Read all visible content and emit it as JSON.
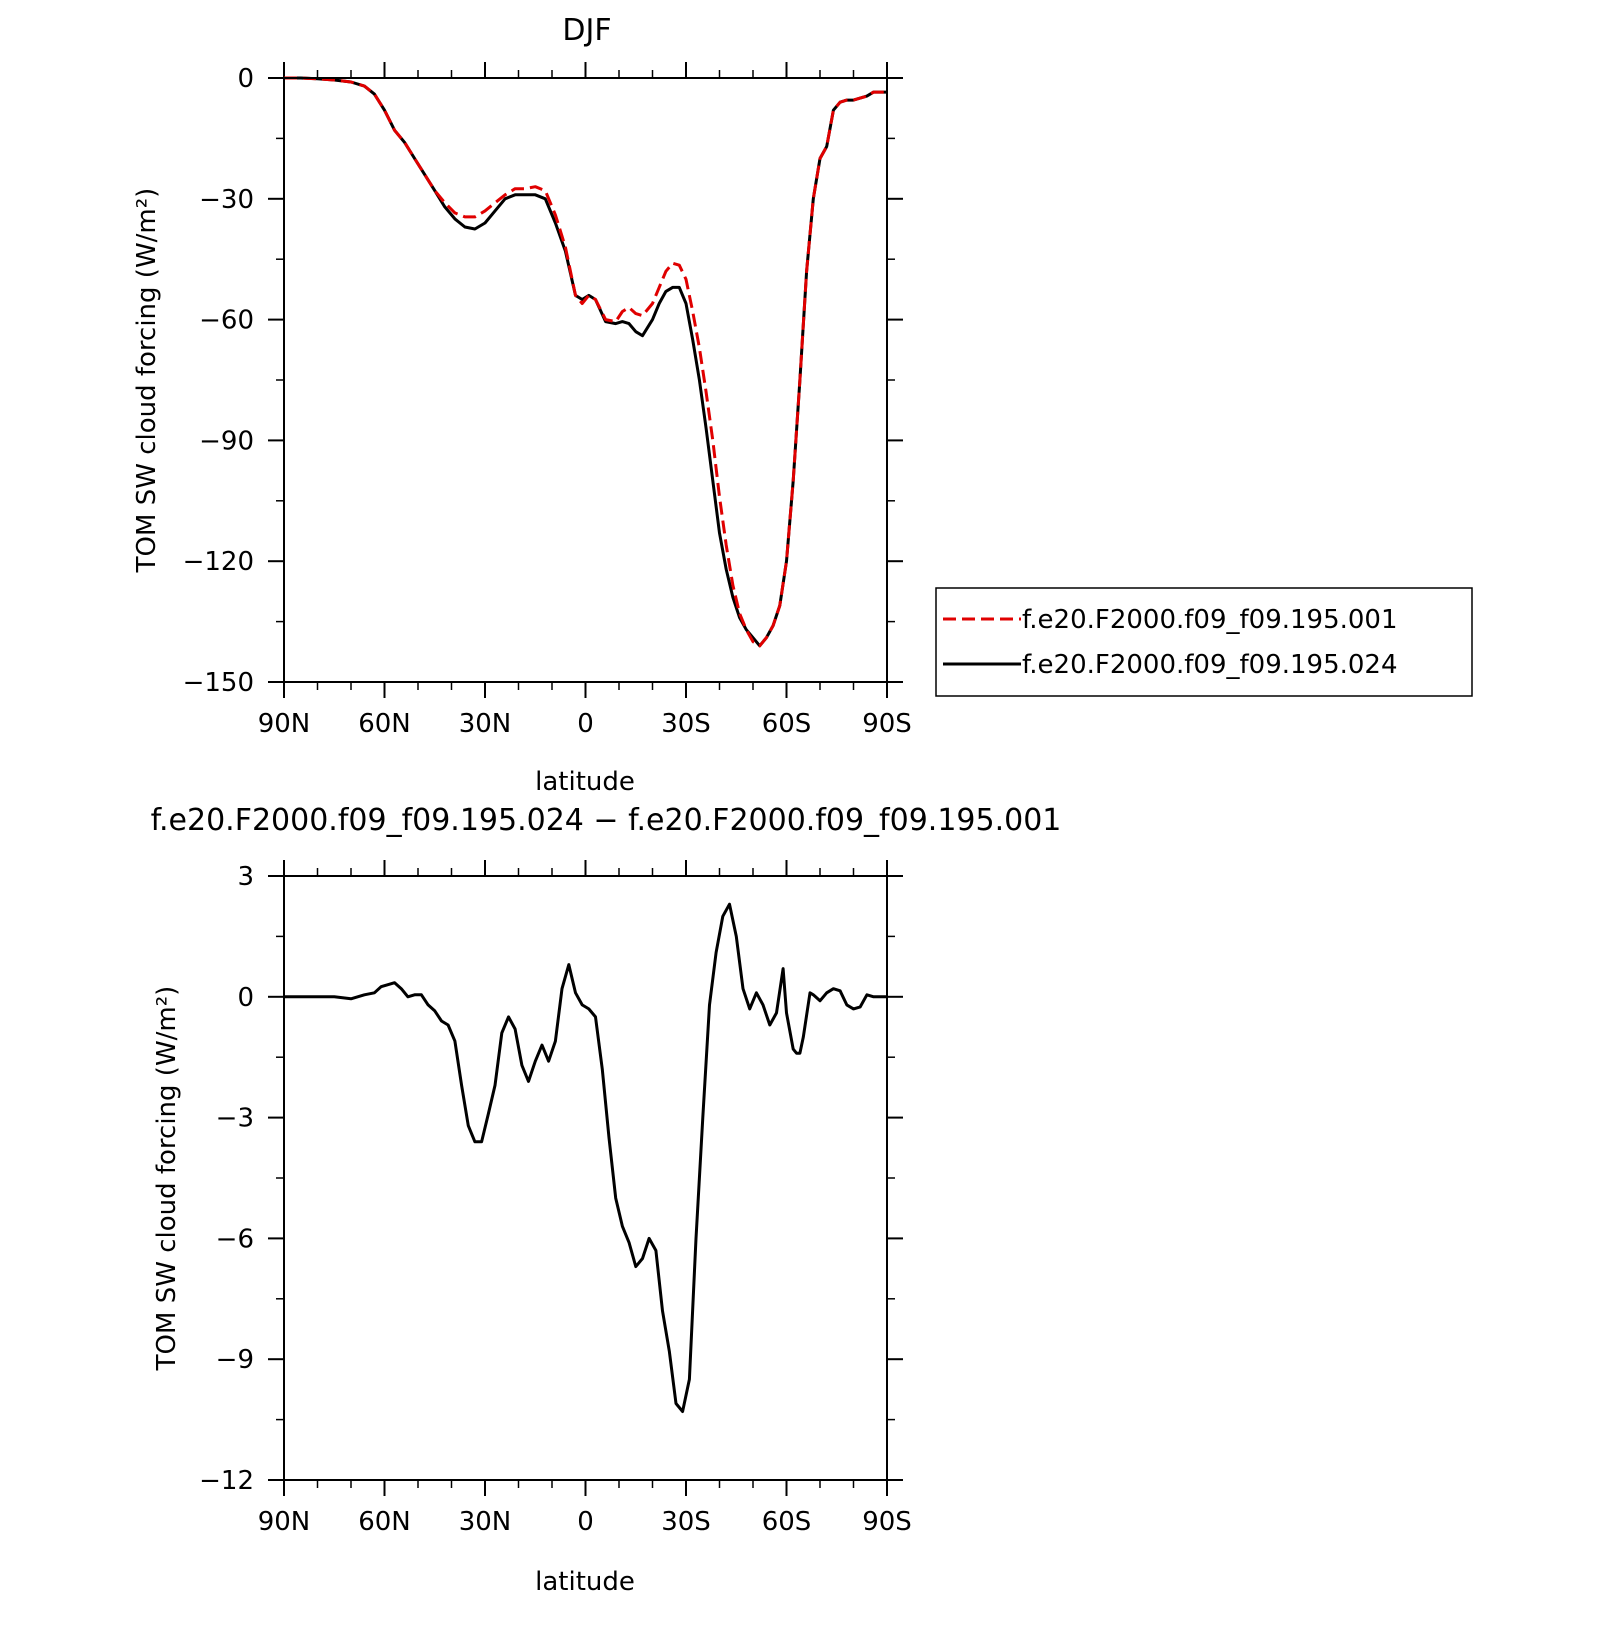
{
  "colors": {
    "series_001": "#e00000",
    "series_024": "#000000",
    "axis": "#000000"
  },
  "chart_data": [
    {
      "type": "line",
      "title": "DJF",
      "xlabel": "latitude",
      "ylabel": "TOM SW cloud forcing (W/m²)",
      "xlim": [
        90,
        -90
      ],
      "ylim": [
        -150,
        0
      ],
      "xticks": [
        90,
        60,
        30,
        0,
        -30,
        -60,
        -90
      ],
      "xtick_labels": [
        "90N",
        "60N",
        "30N",
        "0",
        "30S",
        "60S",
        "90S"
      ],
      "yticks": [
        0,
        -30,
        -60,
        -90,
        -120,
        -150
      ],
      "ytick_labels": [
        "0",
        "−30",
        "−60",
        "−90",
        "−120",
        "−150"
      ],
      "legend": {
        "placement": "right",
        "entries": [
          "f.e20.F2000.f09_f09.195.001",
          "f.e20.F2000.f09_f09.195.024"
        ]
      },
      "series": [
        {
          "name": "f.e20.F2000.f09_f09.195.001",
          "style": "dashed",
          "color": "#e00000",
          "x": [
            90,
            85,
            80,
            75,
            70,
            66,
            63,
            60,
            57,
            54,
            51,
            48,
            45,
            42,
            39,
            36,
            33,
            30,
            27,
            24,
            21,
            18,
            15,
            12,
            9,
            6,
            3,
            1,
            -1,
            -3,
            -6,
            -9,
            -11,
            -13,
            -15,
            -17,
            -20,
            -22,
            -24,
            -26,
            -28,
            -30,
            -32,
            -34,
            -36,
            -38,
            -40,
            -42,
            -44,
            -46,
            -48,
            -50,
            -52,
            -54,
            -56,
            -58,
            -60,
            -62,
            -64,
            -66,
            -68,
            -70,
            -72,
            -74,
            -76,
            -78,
            -80,
            -82,
            -84,
            -86,
            -88,
            -90
          ],
          "y": [
            0,
            0,
            -0.2,
            -0.5,
            -1,
            -2,
            -4,
            -8,
            -13,
            -16,
            -20,
            -24,
            -28,
            -31,
            -33.5,
            -34.5,
            -34.5,
            -33,
            -31,
            -29,
            -27.5,
            -27.5,
            -27,
            -28,
            -34,
            -42,
            -54,
            -56,
            -54,
            -55,
            -60,
            -60.5,
            -58,
            -57,
            -58.5,
            -59,
            -56,
            -52,
            -48,
            -46,
            -46.5,
            -50,
            -58,
            -67,
            -78,
            -90,
            -104,
            -116,
            -126,
            -133,
            -137,
            -140,
            -141,
            -139,
            -136,
            -131,
            -120,
            -100,
            -75,
            -48,
            -30,
            -20,
            -17,
            -8,
            -6,
            -5.5,
            -5.5,
            -5,
            -4.5,
            -3.5,
            -3.5,
            -3.5
          ]
        },
        {
          "name": "f.e20.F2000.f09_f09.195.024",
          "style": "solid",
          "color": "#000000",
          "x": [
            90,
            85,
            80,
            75,
            70,
            66,
            63,
            60,
            57,
            54,
            51,
            48,
            45,
            42,
            39,
            36,
            33,
            30,
            27,
            24,
            21,
            18,
            15,
            12,
            9,
            6,
            3,
            1,
            -1,
            -3,
            -6,
            -9,
            -11,
            -13,
            -15,
            -17,
            -20,
            -22,
            -24,
            -26,
            -28,
            -30,
            -32,
            -34,
            -36,
            -38,
            -40,
            -42,
            -44,
            -46,
            -48,
            -50,
            -52,
            -54,
            -56,
            -58,
            -60,
            -62,
            -64,
            -66,
            -68,
            -70,
            -72,
            -74,
            -76,
            -78,
            -80,
            -82,
            -84,
            -86,
            -88,
            -90
          ],
          "y": [
            0,
            0,
            -0.2,
            -0.5,
            -1,
            -2,
            -4,
            -8,
            -13,
            -16,
            -20,
            -24,
            -28,
            -32,
            -35,
            -37,
            -37.5,
            -36,
            -33,
            -30,
            -29,
            -29,
            -29,
            -30,
            -36,
            -43,
            -54,
            -55,
            -54,
            -55,
            -60.5,
            -61,
            -60.5,
            -61,
            -63,
            -64,
            -60,
            -56,
            -53,
            -52,
            -52,
            -56,
            -65,
            -75,
            -87,
            -100,
            -113,
            -122,
            -129,
            -134,
            -137,
            -139,
            -141,
            -139,
            -136,
            -131,
            -120,
            -100,
            -75,
            -48,
            -30,
            -20,
            -17,
            -8,
            -6,
            -5.5,
            -5.5,
            -5,
            -4.5,
            -3.5,
            -3.5,
            -3.5
          ]
        }
      ]
    },
    {
      "type": "line",
      "title": "f.e20.F2000.f09_f09.195.024 − f.e20.F2000.f09_f09.195.001",
      "xlabel": "latitude",
      "ylabel": "TOM SW cloud forcing (W/m²)",
      "xlim": [
        90,
        -90
      ],
      "ylim": [
        -12,
        3
      ],
      "xticks": [
        90,
        60,
        30,
        0,
        -30,
        -60,
        -90
      ],
      "xtick_labels": [
        "90N",
        "60N",
        "30N",
        "0",
        "30S",
        "60S",
        "90S"
      ],
      "yticks": [
        3,
        0,
        -3,
        -6,
        -9,
        -12
      ],
      "ytick_labels": [
        "3",
        "0",
        "−3",
        "−6",
        "−9",
        "−12"
      ],
      "series": [
        {
          "style": "solid",
          "color": "#000000",
          "x": [
            90,
            80,
            75,
            70,
            66,
            63,
            61,
            59,
            57,
            55,
            53,
            51,
            49,
            47,
            45,
            43,
            41,
            39,
            37,
            35,
            33,
            31,
            29,
            27,
            25,
            23,
            21,
            19,
            17,
            15,
            13,
            11,
            9,
            7,
            5,
            3,
            1,
            -1,
            -3,
            -5,
            -7,
            -9,
            -11,
            -13,
            -15,
            -17,
            -19,
            -21,
            -23,
            -25,
            -27,
            -29,
            -31,
            -33,
            -35,
            -37,
            -39,
            -41,
            -43,
            -45,
            -47,
            -49,
            -51,
            -53,
            -55,
            -57,
            -59,
            -60,
            -62,
            -63,
            -64,
            -65,
            -67,
            -68,
            -70,
            -72,
            -74,
            -76,
            -78,
            -80,
            -82,
            -84,
            -86,
            -88,
            -90
          ],
          "y": [
            0,
            0,
            0,
            -0.05,
            0.05,
            0.1,
            0.25,
            0.3,
            0.35,
            0.2,
            0,
            0.05,
            0.05,
            -0.2,
            -0.35,
            -0.6,
            -0.7,
            -1.1,
            -2.2,
            -3.2,
            -3.6,
            -3.6,
            -2.9,
            -2.2,
            -0.9,
            -0.5,
            -0.8,
            -1.7,
            -2.1,
            -1.6,
            -1.2,
            -1.6,
            -1.1,
            0.2,
            0.8,
            0.1,
            -0.2,
            -0.3,
            -0.5,
            -1.8,
            -3.5,
            -5.0,
            -5.7,
            -6.1,
            -6.7,
            -6.5,
            -6.0,
            -6.3,
            -7.8,
            -8.8,
            -10.1,
            -10.3,
            -9.5,
            -6.0,
            -3.0,
            -0.2,
            1.1,
            2.0,
            2.3,
            1.5,
            0.2,
            -0.3,
            0.1,
            -0.2,
            -0.7,
            -0.4,
            0.7,
            -0.4,
            -1.3,
            -1.4,
            -1.4,
            -1.0,
            0.1,
            0.05,
            -0.1,
            0.1,
            0.2,
            0.15,
            -0.2,
            -0.3,
            -0.25,
            0.05,
            0,
            0,
            0
          ]
        }
      ]
    }
  ]
}
